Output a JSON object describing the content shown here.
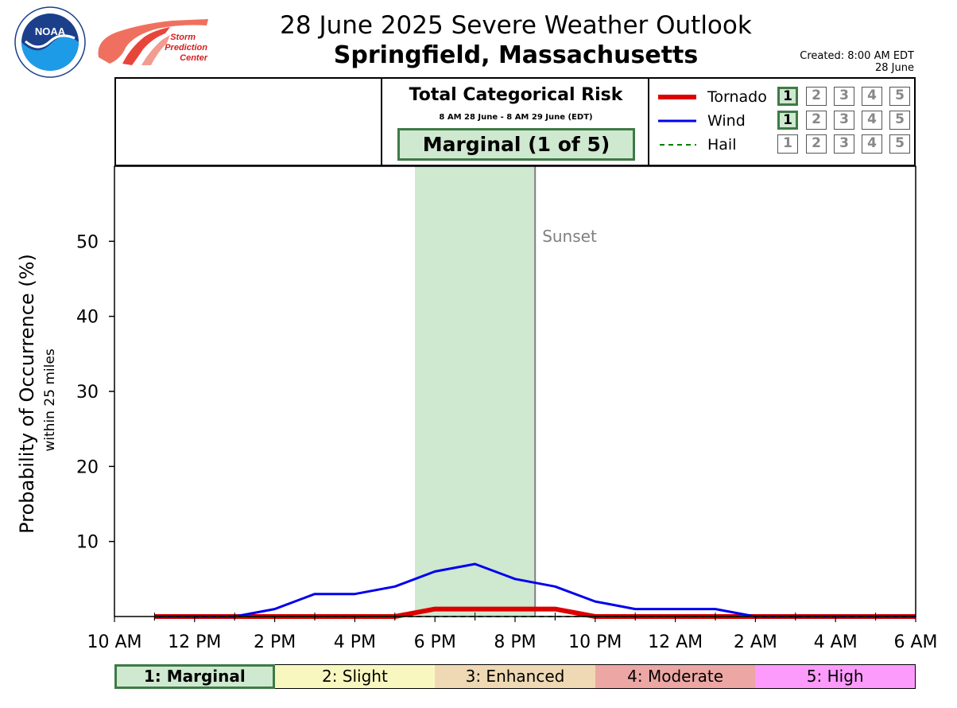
{
  "header": {
    "title": "28 June 2025 Severe Weather Outlook",
    "subtitle": "Springfield, Massachusetts",
    "created_line1": "Created: 8:00 AM EDT",
    "created_line2": "28 June",
    "logos": {
      "noaa_text": "NOAA",
      "spc_text": [
        "Storm",
        "Prediction",
        "Center"
      ]
    }
  },
  "risk_panel": {
    "title": "Total Categorical Risk",
    "period": "8 AM 28 June - 8 AM 29 June (EDT)",
    "badge": "Marginal (1 of 5)"
  },
  "legend": [
    {
      "name": "Tornado",
      "color": "#dd0000",
      "style": "solid-thick",
      "active_level": 1
    },
    {
      "name": "Wind",
      "color": "#0000ee",
      "style": "solid",
      "active_level": 1
    },
    {
      "name": "Hail",
      "color": "#008000",
      "style": "dashed",
      "active_level": 0
    }
  ],
  "level_numbers": [
    "1",
    "2",
    "3",
    "4",
    "5"
  ],
  "chart_data": {
    "type": "line",
    "ylabel": "Probability of Occurrence (%)",
    "ylabel_sub": "within 25 miles",
    "ylim": [
      0,
      60
    ],
    "yticks": [
      10,
      20,
      30,
      40,
      50
    ],
    "xlim_hours": [
      0,
      20
    ],
    "xtick_labels": [
      "10 AM",
      "12 PM",
      "2 PM",
      "4 PM",
      "6 PM",
      "8 PM",
      "10 PM",
      "12 AM",
      "2 AM",
      "4 AM",
      "6 AM"
    ],
    "x_hours": [
      1,
      2,
      3,
      4,
      5,
      6,
      7,
      8,
      9,
      10,
      11,
      12,
      13,
      14,
      15,
      16,
      17,
      18,
      19,
      20
    ],
    "series": [
      {
        "name": "Tornado",
        "color": "#dd0000",
        "values": [
          0,
          0,
          0,
          0,
          0,
          0,
          0,
          1,
          1,
          1,
          1,
          0,
          0,
          0,
          0,
          0,
          0,
          0,
          0,
          0
        ]
      },
      {
        "name": "Wind",
        "color": "#0000ee",
        "values": [
          0,
          0,
          0,
          1,
          3,
          3,
          4,
          6,
          7,
          5,
          4,
          2,
          1,
          1,
          1,
          0,
          0,
          0,
          0,
          0
        ]
      },
      {
        "name": "Hail",
        "color": "#008000",
        "values": [
          0,
          0,
          0,
          0,
          0,
          0,
          0,
          0,
          0,
          0,
          0,
          0,
          0,
          0,
          0,
          0,
          0,
          0,
          0,
          0
        ]
      }
    ],
    "highlight_period_hours": [
      7.5,
      10.5
    ],
    "highlight_color": "#cfe8d0",
    "sunset_hour": 10.5,
    "sunset_label": "Sunset",
    "grid": false
  },
  "categories": [
    {
      "label": "1: Marginal",
      "color": "#cfe8d0",
      "active": true
    },
    {
      "label": "2: Slight",
      "color": "#f8f7c0",
      "active": false
    },
    {
      "label": "3: Enhanced",
      "color": "#efd9b4",
      "active": false
    },
    {
      "label": "4: Moderate",
      "color": "#eca7a4",
      "active": false
    },
    {
      "label": "5: High",
      "color": "#fc9bfc",
      "active": false
    }
  ]
}
